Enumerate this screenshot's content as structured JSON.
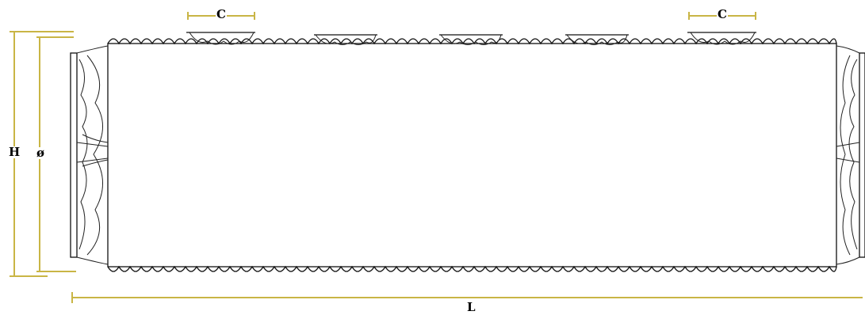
{
  "labels": {
    "height": "H",
    "diameter": "ø",
    "length": "L",
    "connection_left": "C",
    "connection_right": "C"
  },
  "colors": {
    "dimension_line": "#c9b545",
    "outline": "#111111",
    "background": "#ffffff"
  }
}
